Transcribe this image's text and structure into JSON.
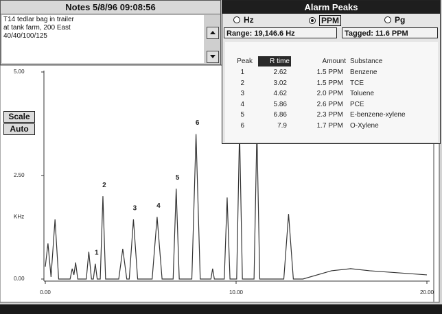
{
  "notes": {
    "title": "Notes 5/8/96 09:08:56",
    "lines": [
      "T14 tedlar bag in trailer",
      "at tank farm, 200 East",
      "40/40/100/125"
    ]
  },
  "alarm_peaks": {
    "title": "Alarm Peaks",
    "units": [
      {
        "label": "Hz",
        "selected": false
      },
      {
        "label": "PPM",
        "selected": true
      },
      {
        "label": "Pg",
        "selected": false
      }
    ],
    "range": "Range: 19,146.6 Hz",
    "tagged": "Tagged: 11.6 PPM",
    "columns": [
      "Peak",
      "R time",
      "Amount",
      "Substance"
    ],
    "rows": [
      [
        1,
        2.62,
        "1.5 PPM",
        "Benzene"
      ],
      [
        2,
        3.02,
        "1.5 PPM",
        "TCE"
      ],
      [
        3,
        4.62,
        "2.0 PPM",
        "Toluene"
      ],
      [
        4,
        5.86,
        "2.6 PPM",
        "PCE"
      ],
      [
        5,
        6.86,
        "2.3 PPM",
        "E-benzene-xylene"
      ],
      [
        6,
        7.9,
        "1.7 PPM",
        "O-Xylene"
      ]
    ]
  },
  "buttons": [
    "Scale",
    "Auto"
  ],
  "chart_data": {
    "type": "line",
    "y_label": "KHz",
    "color": "#333333",
    "xlim": [
      0,
      20
    ],
    "xticks": [
      {
        "value": 0,
        "label": "0.00"
      },
      {
        "value": 10,
        "label": "10.00"
      },
      {
        "value": 20,
        "label": "20.00"
      }
    ],
    "ylim": [
      0,
      5
    ],
    "yticks": [
      {
        "value": 0,
        "label": "0.00"
      },
      {
        "value": 2.5,
        "label": "2.50"
      },
      {
        "value": 5,
        "label": "5.00"
      }
    ],
    "x": [
      0,
      0.14,
      0.3,
      0.51,
      0.7,
      1.3,
      1.41,
      1.5,
      1.59,
      1.7,
      2.15,
      2.28,
      2.42,
      2.52,
      2.62,
      2.72,
      2.88,
      3.02,
      3.16,
      3.85,
      4.06,
      4.27,
      4.4,
      4.62,
      4.84,
      5.6,
      5.86,
      6.12,
      6.7,
      6.86,
      7.02,
      7.68,
      7.9,
      8.12,
      8.68,
      8.77,
      8.86,
      9.38,
      9.53,
      9.68,
      10.03,
      10.18,
      10.33,
      10.94,
      11.09,
      11.24,
      12.5,
      12.75,
      13.0,
      13.5,
      15,
      16,
      17,
      18.5,
      20
    ],
    "values": [
      0.3,
      0.86,
      0.05,
      1.44,
      0,
      0,
      0.25,
      0.1,
      0.4,
      0,
      0,
      0.66,
      0,
      0,
      0.37,
      0,
      0,
      2,
      0,
      0,
      0.73,
      0,
      0,
      1.44,
      0,
      0,
      1.5,
      0,
      0,
      2.18,
      0,
      0,
      3.5,
      0,
      0,
      0.25,
      0,
      0,
      1.97,
      0,
      0,
      3.6,
      0,
      0,
      3.6,
      0,
      0,
      1.57,
      0,
      0,
      0.2,
      0.25,
      0.2,
      0.15,
      0.1
    ],
    "peak_labels": [
      {
        "text": "1",
        "x": 2.62
      },
      {
        "text": "2",
        "x": 3.02
      },
      {
        "text": "3",
        "x": 4.62
      },
      {
        "text": "4",
        "x": 5.86
      },
      {
        "text": "5",
        "x": 6.86
      },
      {
        "text": "6",
        "x": 7.9
      }
    ]
  }
}
